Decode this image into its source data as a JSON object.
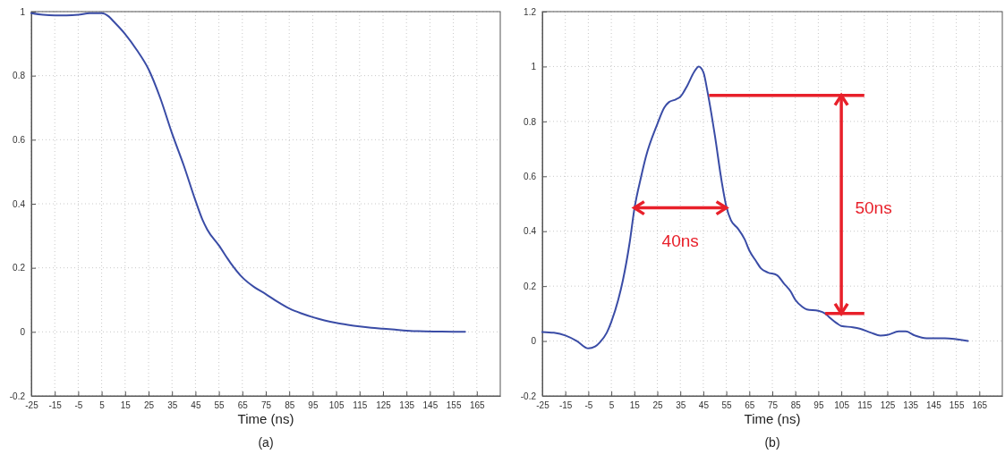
{
  "chart_data": [
    {
      "type": "line",
      "xlabel": "Time (ns)",
      "annotations": [
        "(a)"
      ],
      "xlim": [
        -25,
        175
      ],
      "ylim": [
        -0.2,
        1
      ],
      "xticks": [
        -25,
        -15,
        -5,
        5,
        15,
        25,
        35,
        45,
        55,
        65,
        75,
        85,
        95,
        105,
        115,
        125,
        135,
        145,
        155,
        165
      ],
      "yticks": [
        -0.2,
        0,
        0.2,
        0.4,
        0.6,
        0.8,
        1
      ],
      "grid": true,
      "line_style": "solid",
      "marker": "none",
      "series": [
        {
          "color": "#3a4ca6",
          "x": [
            -25,
            -20,
            -15,
            -10,
            -5,
            0,
            5,
            8,
            10,
            15,
            20,
            25,
            30,
            35,
            40,
            45,
            48,
            50,
            55,
            60,
            65,
            70,
            75,
            80,
            85,
            90,
            95,
            100,
            105,
            110,
            115,
            120,
            125,
            130,
            135,
            140,
            150,
            160
          ],
          "values": [
            0.995,
            0.99,
            0.988,
            0.988,
            0.99,
            0.995,
            0.995,
            0.985,
            0.97,
            0.93,
            0.88,
            0.82,
            0.73,
            0.62,
            0.52,
            0.41,
            0.35,
            0.32,
            0.27,
            0.215,
            0.17,
            0.14,
            0.118,
            0.094,
            0.073,
            0.058,
            0.046,
            0.036,
            0.028,
            0.022,
            0.017,
            0.013,
            0.01,
            0.007,
            0.004,
            0.002,
            0.001,
            0
          ]
        }
      ]
    },
    {
      "type": "line",
      "xlabel": "Time (ns)",
      "annotations": [
        "40ns",
        "50ns",
        "(b)"
      ],
      "xlim": [
        -25,
        175
      ],
      "ylim": [
        -0.2,
        1.2
      ],
      "xticks": [
        -25,
        -15,
        -5,
        5,
        15,
        25,
        35,
        45,
        55,
        65,
        75,
        85,
        95,
        105,
        115,
        125,
        135,
        145,
        155,
        165
      ],
      "yticks": [
        -0.2,
        0,
        0.2,
        0.4,
        0.6,
        0.8,
        1,
        1.2
      ],
      "grid": true,
      "line_style": "solid",
      "marker": "none",
      "series": [
        {
          "color": "#3a4ca6",
          "x": [
            -25,
            -20,
            -15,
            -10,
            -5,
            -2,
            0,
            3,
            5,
            8,
            10,
            13,
            15,
            18,
            20,
            25,
            28,
            30,
            33,
            35,
            38,
            41,
            43,
            45,
            47,
            50,
            53,
            55,
            57,
            60,
            63,
            65,
            68,
            70,
            73,
            77,
            80,
            83,
            85,
            88,
            90,
            95,
            98,
            100,
            103,
            105,
            110,
            113,
            118,
            122,
            125,
            130,
            133,
            137,
            142,
            150,
            160
          ],
          "values": [
            0.033,
            0.03,
            0.02,
            0,
            -0.027,
            -0.02,
            -0.005,
            0.03,
            0.07,
            0.15,
            0.22,
            0.36,
            0.48,
            0.6,
            0.67,
            0.79,
            0.85,
            0.87,
            0.88,
            0.89,
            0.93,
            0.98,
            1,
            0.98,
            0.9,
            0.75,
            0.58,
            0.49,
            0.44,
            0.41,
            0.37,
            0.33,
            0.29,
            0.265,
            0.25,
            0.24,
            0.21,
            0.18,
            0.15,
            0.125,
            0.115,
            0.11,
            0.1,
            0.085,
            0.065,
            0.055,
            0.05,
            0.045,
            0.03,
            0.02,
            0.022,
            0.035,
            0.035,
            0.02,
            0.01,
            0.01,
            0
          ]
        }
      ]
    }
  ]
}
